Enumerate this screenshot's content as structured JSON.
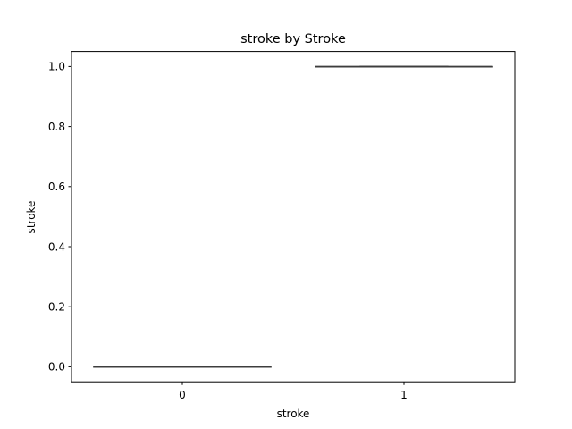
{
  "chart_data": {
    "type": "box",
    "title": "stroke by Stroke",
    "xlabel": "stroke",
    "ylabel": "stroke",
    "categories": [
      "0",
      "1"
    ],
    "boxes": [
      {
        "category": "0",
        "min": 0.0,
        "q1": 0.0,
        "median": 0.0,
        "q3": 0.0,
        "max": 0.0
      },
      {
        "category": "1",
        "min": 1.0,
        "q1": 1.0,
        "median": 1.0,
        "q3": 1.0,
        "max": 1.0
      }
    ],
    "y_ticks": [
      "0.0",
      "0.2",
      "0.4",
      "0.6",
      "0.8",
      "1.0"
    ],
    "y_tick_values": [
      0.0,
      0.2,
      0.4,
      0.6,
      0.8,
      1.0
    ],
    "ylim": [
      -0.05,
      1.05
    ],
    "grid": false,
    "legend": "none",
    "colors": {
      "line": "#3d3d3d",
      "axis": "#000000",
      "background": "#ffffff"
    }
  }
}
